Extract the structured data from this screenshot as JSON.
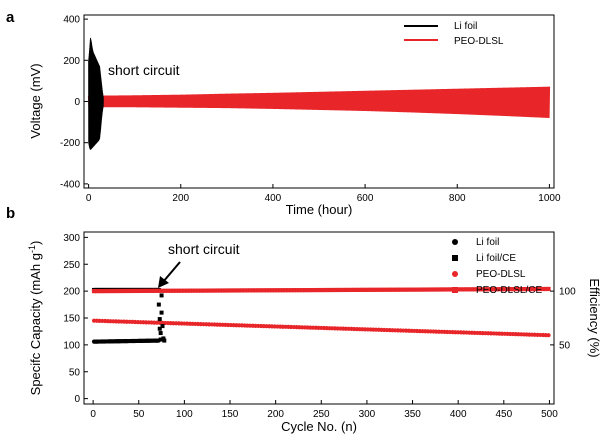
{
  "figure": {
    "panel_a_letter": "a",
    "panel_b_letter": "b"
  },
  "chart_data": [
    {
      "type": "line",
      "xlabel": "Time (hour)",
      "ylabel": "Voltage (mV)",
      "xlim": [
        -10,
        1010
      ],
      "ylim": [
        -420,
        420
      ],
      "xticks": [
        0,
        200,
        400,
        600,
        800,
        1000
      ],
      "yticks": [
        -400,
        -200,
        0,
        200,
        400
      ],
      "xtick_labels": [
        "0",
        "200",
        "400",
        "600",
        "800",
        "1000"
      ],
      "ytick_labels": [
        "-400",
        "-200",
        "0",
        "200",
        "400"
      ],
      "grid": false,
      "legend_position": "top-right",
      "annotation": "short circuit",
      "series": [
        {
          "name": "Li foil",
          "color": "#000000",
          "style": "oscillating voltage envelope",
          "x": [
            0,
            2,
            4,
            6,
            8,
            10,
            12,
            14,
            16,
            18,
            20,
            22,
            24,
            26,
            28,
            30,
            32
          ],
          "y_upper": [
            200,
            250,
            310,
            290,
            260,
            240,
            230,
            220,
            210,
            200,
            190,
            180,
            170,
            130,
            90,
            50,
            20
          ],
          "y_lower": [
            -200,
            -225,
            -235,
            -230,
            -225,
            -220,
            -215,
            -210,
            -205,
            -200,
            -195,
            -190,
            -180,
            -140,
            -90,
            -50,
            -20
          ]
        },
        {
          "name": "PEO-DLSL",
          "color": "#e8262a",
          "style": "oscillating voltage envelope",
          "x": [
            0,
            100,
            200,
            300,
            400,
            500,
            600,
            700,
            800,
            900,
            1000
          ],
          "y_upper": [
            28,
            30,
            33,
            38,
            42,
            47,
            52,
            57,
            62,
            67,
            72
          ],
          "y_lower": [
            -28,
            -28,
            -30,
            -32,
            -36,
            -41,
            -46,
            -53,
            -61,
            -70,
            -80
          ]
        }
      ]
    },
    {
      "type": "scatter",
      "xlabel": "Cycle No. (n)",
      "ylabel_left": "Specifc Capacity (mAh g",
      "ylabel_left_sup": "-1",
      "ylabel_left_end": ")",
      "ylabel_right": "Efficiency (%)",
      "xlim": [
        -10,
        505
      ],
      "ylim_left": [
        -10,
        310
      ],
      "ylim_right": [
        -5,
        155
      ],
      "xticks": [
        0,
        50,
        100,
        150,
        200,
        250,
        300,
        350,
        400,
        450,
        500
      ],
      "xtick_labels": [
        "0",
        "50",
        "100",
        "150",
        "200",
        "250",
        "300",
        "350",
        "400",
        "450",
        "500"
      ],
      "yticks_left": [
        0,
        50,
        100,
        150,
        200,
        250,
        300
      ],
      "ytick_labels_left": [
        "0",
        "50",
        "100",
        "150",
        "200",
        "250",
        "300"
      ],
      "yticks_right": [
        50,
        100
      ],
      "ytick_labels_right": [
        "50",
        "100"
      ],
      "grid": false,
      "legend_position": "top-right",
      "annotation": "short circuit",
      "series": [
        {
          "name": "Li foil",
          "axis": "left",
          "marker": "circle",
          "color": "#000000",
          "x_start": 1,
          "x_end": 72,
          "x_step": 1,
          "y_start": 106,
          "y_end": 108
        },
        {
          "name": "Li foil/CE",
          "axis": "right",
          "marker": "square",
          "color": "#000000",
          "x_start": 1,
          "x_end": 72,
          "x_step": 1,
          "y_start": 101,
          "y_end": 101
        },
        {
          "name": "PEO-DLSL",
          "axis": "left",
          "marker": "circle",
          "color": "#e8262a",
          "x_start": 1,
          "x_end": 500,
          "x_step": 3,
          "y_start": 145,
          "y_end": 118
        },
        {
          "name": "PEO-DLSL/CE",
          "axis": "right",
          "marker": "square",
          "color": "#e8262a",
          "x_start": 1,
          "x_end": 500,
          "x_step": 3,
          "y_start": 100,
          "y_end": 102
        }
      ],
      "short_circuit_points": {
        "x": [
          72,
          73,
          73,
          74,
          74,
          75,
          75,
          76,
          77,
          78
        ],
        "y_left": [
          175,
          148,
          130,
          122,
          110,
          160,
          192,
          135,
          112,
          108
        ]
      }
    }
  ]
}
